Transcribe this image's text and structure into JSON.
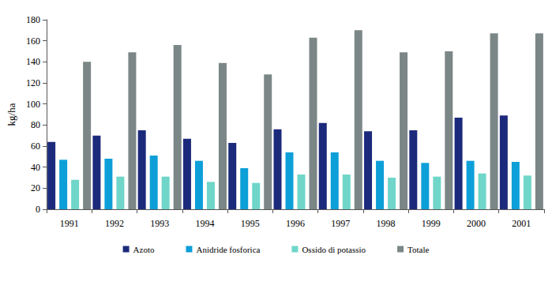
{
  "chart_data": {
    "type": "bar",
    "y_label": "kg/ha",
    "categories": [
      "1991",
      "1992",
      "1993",
      "1994",
      "1995",
      "1996",
      "1997",
      "1998",
      "1999",
      "2000",
      "2001"
    ],
    "series": [
      {
        "name": "Azoto",
        "color": "#1c2a7c",
        "values": [
          64,
          70,
          75,
          67,
          63,
          76,
          82,
          74,
          75,
          87,
          89
        ]
      },
      {
        "name": "Anidride fosforica",
        "color": "#0d9fd8",
        "values": [
          47,
          48,
          51,
          46,
          39,
          54,
          54,
          46,
          44,
          46,
          45
        ]
      },
      {
        "name": "Ossido di potassio",
        "color": "#6fd6c9",
        "values": [
          28,
          31,
          31,
          26,
          25,
          33,
          33,
          30,
          31,
          34,
          32
        ]
      },
      {
        "name": "Totale",
        "color": "#7b8786",
        "values": [
          140,
          149,
          156,
          139,
          128,
          163,
          170,
          149,
          150,
          167,
          167
        ]
      }
    ],
    "ylim": [
      0,
      180
    ],
    "yticks": [
      0,
      20,
      40,
      60,
      80,
      100,
      120,
      140,
      160,
      180
    ],
    "grid": false,
    "legend": "bottom"
  }
}
